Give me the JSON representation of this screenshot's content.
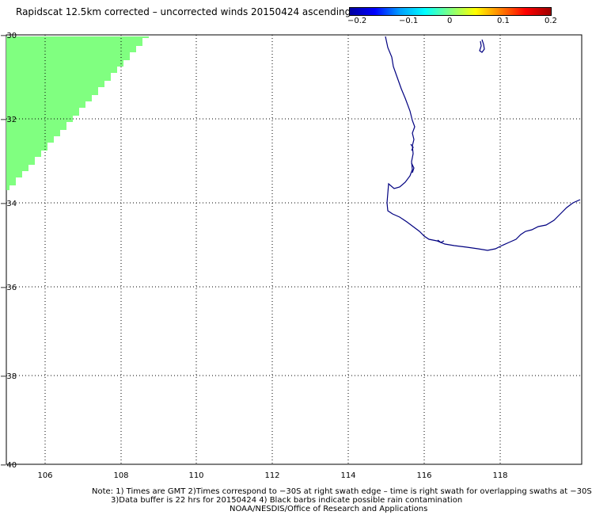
{
  "title": "Rapidscat 12.5km corrected – uncorrected winds 20150424 ascending",
  "colorbar": {
    "labels": [
      "−0.2",
      "−0.1",
      "0",
      "0.1",
      "0.2"
    ],
    "colors": [
      "#0000a0",
      "#0000ff",
      "#00a0ff",
      "#00ffff",
      "#80ff80",
      "#ffff00",
      "#ff8000",
      "#ff0000",
      "#a00000"
    ]
  },
  "map": {
    "x_ticks": [
      "106",
      "108",
      "110",
      "112",
      "114",
      "116",
      "118"
    ],
    "y_ticks": [
      "−30",
      "−32",
      "−34",
      "−36",
      "−38",
      "−40"
    ],
    "lon_range": [
      105,
      120
    ],
    "lat_range": [
      -40,
      -30
    ],
    "swath_color": "#80ff80",
    "coast_color": "#000080"
  },
  "notes": {
    "line1": "Note: 1) Times are GMT 2)Times correspond to −30S at right swath edge – time is right swath for overlapping swaths at −30S",
    "line2": "3)Data buffer is 22 hrs for 20150424 4) Black barbs indicate possible rain contamination",
    "line3": "NOAA/NESDIS/Office of Research and Applications"
  }
}
